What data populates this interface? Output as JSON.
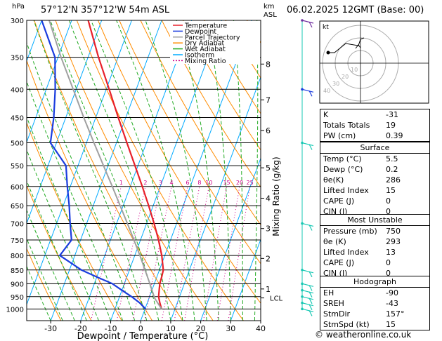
{
  "header": {
    "location": "57°12'N 357°12'W 54m ASL",
    "datetime": "06.02.2025 12GMT (Base: 00)",
    "pressure_unit": "hPa",
    "km_unit": "km",
    "km_unit2": "ASL"
  },
  "chart_data": {
    "type": "line",
    "title": "",
    "xlabel": "Dewpoint / Temperature (°C)",
    "ylabel": "Mixing Ratio (g/kg)",
    "x_ticks": [
      -30,
      -20,
      -10,
      0,
      10,
      20,
      30,
      40
    ],
    "y_ticks": [
      300,
      350,
      400,
      450,
      500,
      550,
      600,
      650,
      700,
      750,
      800,
      850,
      900,
      950,
      1000
    ],
    "xlim": [
      -38,
      40
    ],
    "ylim": [
      1050,
      300
    ],
    "y_scale": "log",
    "skew": "skew-T",
    "km_ticks": [
      {
        "km": "1",
        "p": 920
      },
      {
        "km": "2",
        "p": 810
      },
      {
        "km": "3",
        "p": 715
      },
      {
        "km": "4",
        "p": 630
      },
      {
        "km": "5",
        "p": 555
      },
      {
        "km": "6",
        "p": 475
      },
      {
        "km": "7",
        "p": 418
      },
      {
        "km": "8",
        "p": 360
      }
    ],
    "lcl": {
      "label": "LCL",
      "p": 955
    },
    "mixing_ratio_labels": [
      "1",
      "2",
      "3",
      "4",
      "6",
      "8",
      "10",
      "15",
      "20",
      "25"
    ],
    "mixing_ratio_values": [
      1,
      2,
      3,
      4,
      6,
      8,
      10,
      15,
      20,
      25
    ],
    "legend": {
      "position": "top-right",
      "entries": [
        {
          "name": "Temperature",
          "color": "#e8202a",
          "dash": ""
        },
        {
          "name": "Dewpoint",
          "color": "#1a3cde",
          "dash": ""
        },
        {
          "name": "Parcel Trajectory",
          "color": "#a0a0a0",
          "dash": ""
        },
        {
          "name": "Dry Adiabat",
          "color": "#ff8c00",
          "dash": ""
        },
        {
          "name": "Wet Adiabat",
          "color": "#22aa22",
          "dash": ""
        },
        {
          "name": "Isotherm",
          "color": "#00aaff",
          "dash": ""
        },
        {
          "name": "Mixing Ratio",
          "color": "#cc0088",
          "dash": "2,2"
        }
      ]
    },
    "series": [
      {
        "name": "Temperature",
        "color": "#e8202a",
        "points": [
          [
            1000,
            5.5
          ],
          [
            975,
            4.2
          ],
          [
            950,
            3.0
          ],
          [
            925,
            2.4
          ],
          [
            900,
            1.8
          ],
          [
            875,
            1.6
          ],
          [
            850,
            1.3
          ],
          [
            800,
            -1.0
          ],
          [
            750,
            -4.0
          ],
          [
            700,
            -7.5
          ],
          [
            650,
            -11.5
          ],
          [
            600,
            -16.0
          ],
          [
            550,
            -21.0
          ],
          [
            500,
            -26.5
          ],
          [
            450,
            -32.5
          ],
          [
            400,
            -39.0
          ],
          [
            350,
            -46.5
          ],
          [
            300,
            -54.5
          ]
        ]
      },
      {
        "name": "Dewpoint",
        "color": "#1a3cde",
        "points": [
          [
            1000,
            0.2
          ],
          [
            975,
            -2.5
          ],
          [
            950,
            -6.0
          ],
          [
            925,
            -10.0
          ],
          [
            900,
            -14.0
          ],
          [
            875,
            -20.0
          ],
          [
            850,
            -26.0
          ],
          [
            800,
            -35.0
          ],
          [
            750,
            -33.0
          ],
          [
            700,
            -35.5
          ],
          [
            650,
            -38.0
          ],
          [
            600,
            -41.0
          ],
          [
            550,
            -44.0
          ],
          [
            500,
            -52.0
          ],
          [
            450,
            -54.0
          ],
          [
            400,
            -57.0
          ],
          [
            350,
            -61.0
          ],
          [
            300,
            -70.0
          ]
        ]
      },
      {
        "name": "Parcel Trajectory",
        "color": "#a0a0a0",
        "points": [
          [
            1000,
            5.5
          ],
          [
            955,
            1.8
          ],
          [
            900,
            -1.5
          ],
          [
            850,
            -4.8
          ],
          [
            800,
            -8.3
          ],
          [
            750,
            -12.2
          ],
          [
            700,
            -16.4
          ],
          [
            650,
            -21.0
          ],
          [
            600,
            -26.0
          ],
          [
            550,
            -31.5
          ],
          [
            500,
            -37.5
          ],
          [
            450,
            -44.0
          ],
          [
            400,
            -51.0
          ],
          [
            350,
            -59.0
          ],
          [
            300,
            -67.5
          ]
        ]
      }
    ]
  },
  "hodograph": {
    "unit": "kt",
    "ring_labels": [
      "10",
      "20",
      "30",
      "40"
    ]
  },
  "indices": [
    {
      "label": "K",
      "value": "-31"
    },
    {
      "label": "Totals Totals",
      "value": "19"
    },
    {
      "label": "PW (cm)",
      "value": "0.39"
    }
  ],
  "surface": {
    "title": "Surface",
    "rows": [
      {
        "label": "Temp (°C)",
        "value": "5.5"
      },
      {
        "label": "Dewp (°C)",
        "value": "0.2"
      },
      {
        "label": "θe(K)",
        "value": "286"
      },
      {
        "label": "Lifted Index",
        "value": "15"
      },
      {
        "label": "CAPE (J)",
        "value": "0"
      },
      {
        "label": "CIN (J)",
        "value": "0"
      }
    ]
  },
  "most_unstable": {
    "title": "Most Unstable",
    "rows": [
      {
        "label": "Pressure (mb)",
        "value": "750"
      },
      {
        "label": "θe (K)",
        "value": "293"
      },
      {
        "label": "Lifted Index",
        "value": "13"
      },
      {
        "label": "CAPE (J)",
        "value": "0"
      },
      {
        "label": "CIN (J)",
        "value": "0"
      }
    ]
  },
  "hodograph_table": {
    "title": "Hodograph",
    "rows": [
      {
        "label": "EH",
        "value": "-90"
      },
      {
        "label": "SREH",
        "value": "-43"
      },
      {
        "label": "StmDir",
        "value": "157°"
      },
      {
        "label": "StmSpd (kt)",
        "value": "15"
      }
    ]
  },
  "copyright": "© weatheronline.co.uk",
  "colors": {
    "temperature": "#e8202a",
    "dewpoint": "#1a3cde",
    "parcel": "#a0a0a0",
    "dry_adiabat": "#ff8c00",
    "wet_adiabat": "#22aa22",
    "isotherm": "#00aaff",
    "mixing_ratio": "#cc0088",
    "wind_barb": "#19c8b4",
    "wind_barb_upper": "#7030a0",
    "wind_barb_mid": "#1a3cde"
  }
}
